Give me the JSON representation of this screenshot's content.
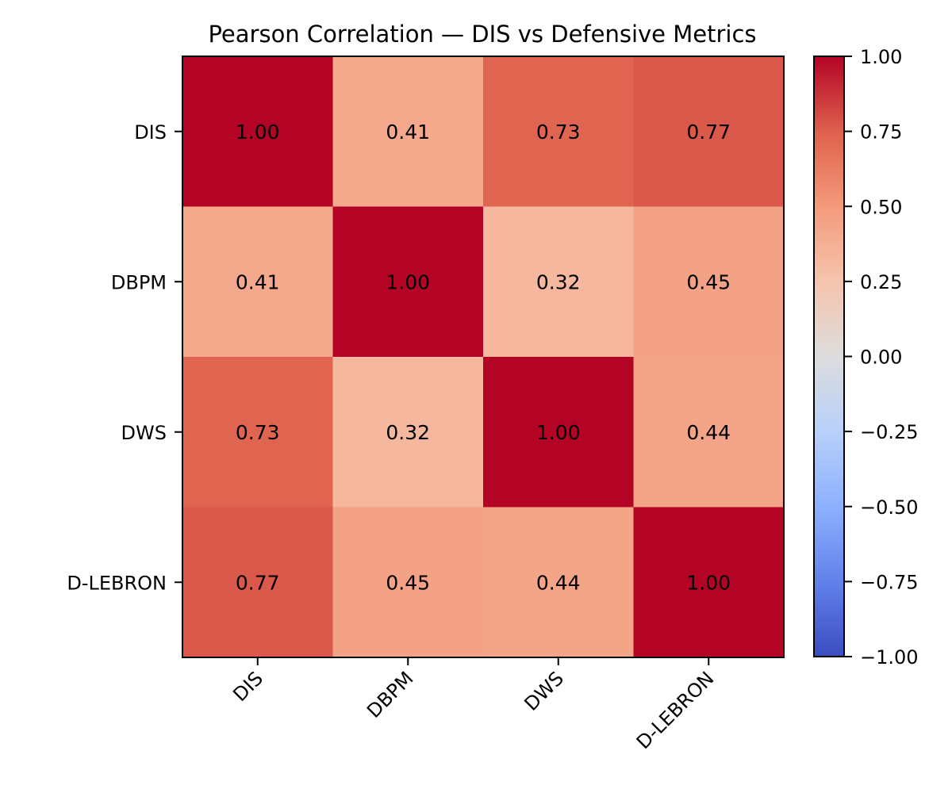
{
  "chart_data": {
    "type": "heatmap",
    "title": "Pearson Correlation — DIS vs Defensive Metrics",
    "rows": [
      "DIS",
      "DBPM",
      "DWS",
      "D-LEBRON"
    ],
    "columns": [
      "DIS",
      "DBPM",
      "DWS",
      "D-LEBRON"
    ],
    "values": [
      [
        1.0,
        0.41,
        0.73,
        0.77
      ],
      [
        0.41,
        1.0,
        0.32,
        0.45
      ],
      [
        0.73,
        0.32,
        1.0,
        0.44
      ],
      [
        0.77,
        0.45,
        0.44,
        1.0
      ]
    ],
    "cell_labels": [
      [
        "1.00",
        "0.41",
        "0.73",
        "0.77"
      ],
      [
        "0.41",
        "1.00",
        "0.32",
        "0.45"
      ],
      [
        "0.73",
        "0.32",
        "1.00",
        "0.44"
      ],
      [
        "0.77",
        "0.45",
        "0.44",
        "1.00"
      ]
    ],
    "colormap": "coolwarm",
    "vmin": -1.0,
    "vmax": 1.0,
    "colorbar": {
      "ticks": [
        1.0,
        0.75,
        0.5,
        0.25,
        0.0,
        -0.25,
        -0.5,
        -0.75,
        -1.0
      ],
      "tick_labels": [
        "1.00",
        "0.75",
        "0.50",
        "0.25",
        "0.00",
        "−0.25",
        "−0.50",
        "−0.75",
        "−1.00"
      ],
      "placement": "right"
    },
    "xtick_rotation": 45,
    "grid": false
  }
}
